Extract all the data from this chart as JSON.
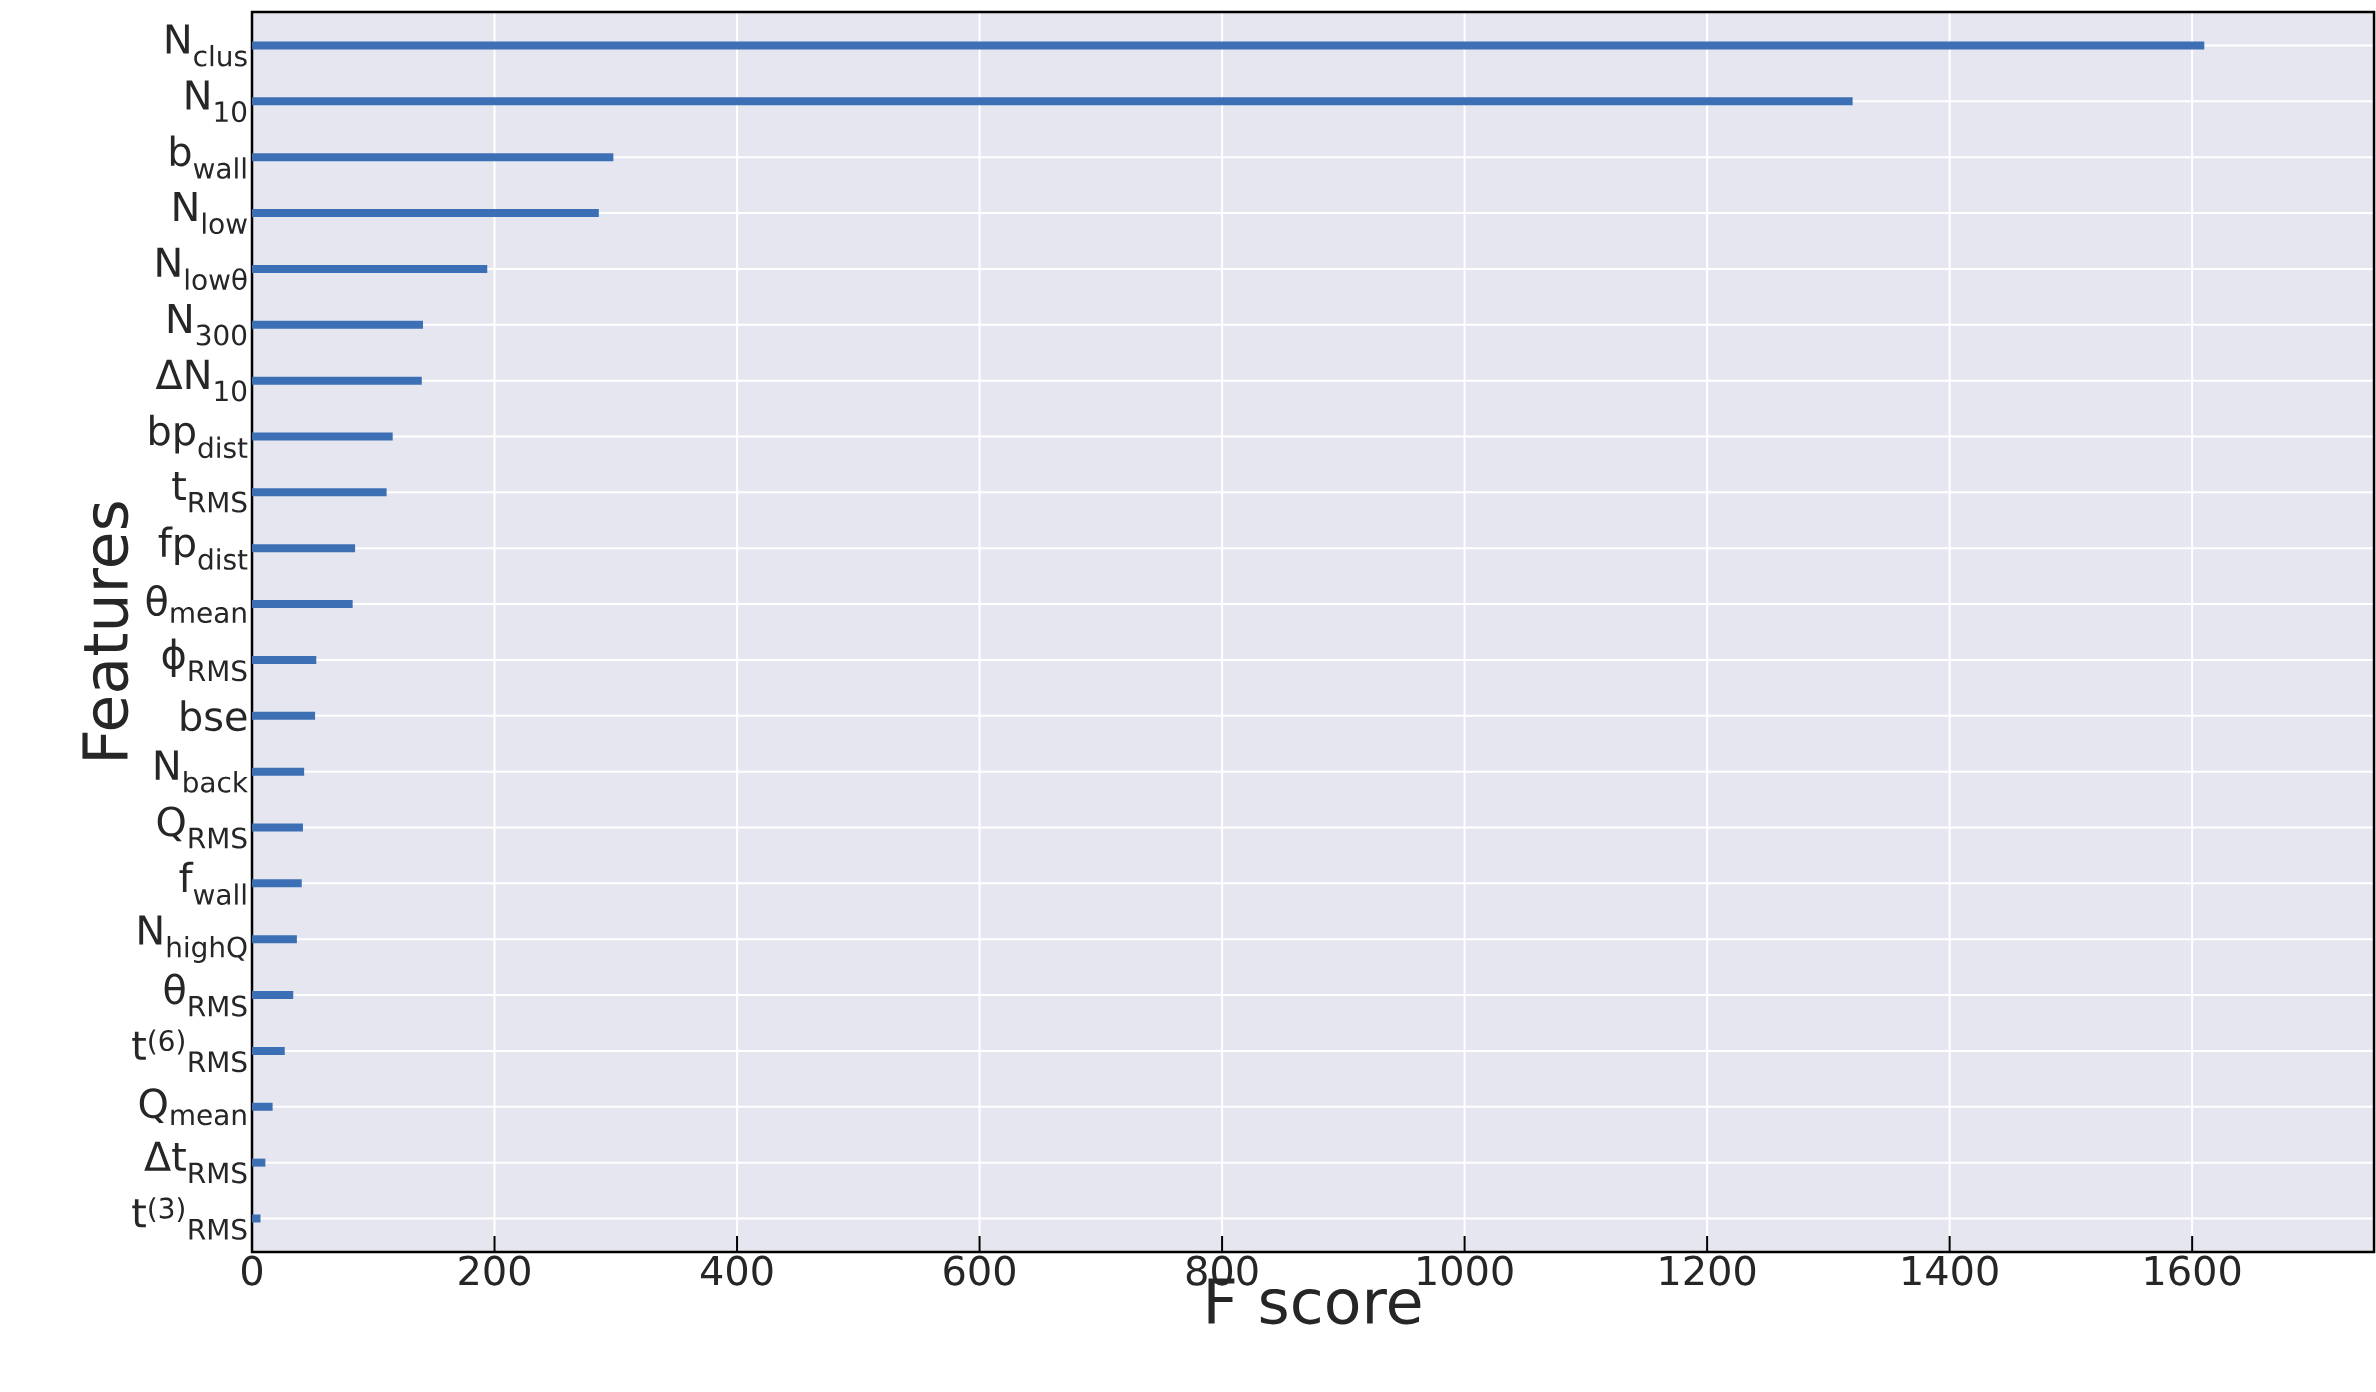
{
  "chart_data": {
    "type": "bar",
    "orientation": "horizontal",
    "xlabel": "F score",
    "ylabel": "Features",
    "categories": [
      "N$_{clus}$",
      "N$_{10}$",
      "b$_{wall}$",
      "N$_{low}$",
      "N$_{lowθ}$",
      "N$_{300}$",
      "ΔN$_{10}$",
      "bp$_{dist}$",
      "t$_{RMS}$",
      "fp$_{dist}$",
      "θ$_{mean}$",
      "ϕ$_{RMS}$",
      "bse",
      "N$_{back}$",
      "Q$_{RMS}$",
      "f$_{wall}$",
      "N$_{highQ}$",
      "θ$_{RMS}$",
      "t$^{(6)}$$_{RMS}$",
      "Q$_{mean}$",
      "Δt$_{RMS}$",
      "t$^{(3)}$$_{RMS}$"
    ],
    "values": [
      1610,
      1320,
      298,
      286,
      194,
      141,
      140,
      116,
      111,
      85,
      83,
      53,
      52,
      43,
      42,
      41,
      37,
      34,
      27,
      17,
      11,
      7
    ],
    "color": "#3d6fb4",
    "xlim": [
      0,
      1750
    ],
    "xticks": [
      0,
      200,
      400,
      600,
      800,
      1000,
      1200,
      1400,
      1600
    ],
    "grid": true
  }
}
